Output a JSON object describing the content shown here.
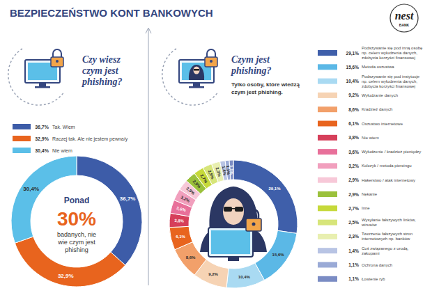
{
  "header": {
    "title": "BEZPIECZEŃSTWO KONT BANKOWYCH",
    "logo": {
      "name": "nest",
      "sub": "BANK"
    }
  },
  "chart_data": [
    {
      "type": "pie",
      "title": "Czy wiesz czym jest phishing?",
      "categories": [
        "Tak. Wiem",
        "Raczej tak. Ale nie jestem pewna/y",
        "Nie wiem"
      ],
      "values": [
        36.7,
        32.9,
        30.4
      ],
      "value_labels": [
        "36,7%",
        "32,9%",
        "30,4%"
      ],
      "colors": [
        "#3d5ca8",
        "#e8641e",
        "#5bbfe8"
      ],
      "data_labels": true,
      "legend": "top",
      "annotation": {
        "prefix": "Ponad",
        "highlight": "30%",
        "text": "badanych, nie wie czym jest phishing"
      }
    },
    {
      "type": "pie",
      "title": "Czym jest phishing?",
      "subtitle": "Tylko osoby, które wiedzą czym jest phishing.",
      "categories": [
        "Podszywanie się pod inną osobę np. celem wyłudzenia danych, zdobycia korzyści finansowej",
        "Metoda oszustwa",
        "Podszywanie się pod instytucje np. celem wyłudzenia danych, zdobycia korzyści finansowej",
        "Wyłudzanie danych",
        "Kradzież danych",
        "Oszustwo internetowe",
        "Nie wiem",
        "Wyłudzenie / kradzież pieniędzy",
        "Kolczyk / metoda piercingu",
        "Hakerstwo / atak internetowy",
        "Nękanie",
        "Inne",
        "Wysyłanie fałszywych linków, wirusów",
        "Tworzenie fałszywych stron internetowych np. banków",
        "Coś związanego z urodą, zakupami",
        "Ochrona danych",
        "Łowienie ryb"
      ],
      "values": [
        29.1,
        15.6,
        10.4,
        9.2,
        8.6,
        6.1,
        3.8,
        3.6,
        3.2,
        2.9,
        2.9,
        2.7,
        2.5,
        2.3,
        1.4,
        1.1,
        1.1
      ],
      "value_labels": [
        "29,1%",
        "15,6%",
        "10,4%",
        "9,2%",
        "8,6%",
        "6,1%",
        "3,8%",
        "3,6%",
        "3,2%",
        "2,9%",
        "2,9%",
        "2,7%",
        "2,5%",
        "2,3%",
        "1,4%",
        "1,1%",
        "1,1%"
      ],
      "colors": [
        "#3f5faa",
        "#5bb8e6",
        "#a9daf2",
        "#f6d3b4",
        "#f2a06a",
        "#e8641e",
        "#d63f5a",
        "#e8709a",
        "#f19fbd",
        "#f7c8d8",
        "#9bc13c",
        "#c6d93a",
        "#d7e57a",
        "#e8efb0",
        "#b8c4e4",
        "#9aaad6",
        "#7b8cc4"
      ],
      "data_labels": true,
      "legend": "right"
    }
  ]
}
